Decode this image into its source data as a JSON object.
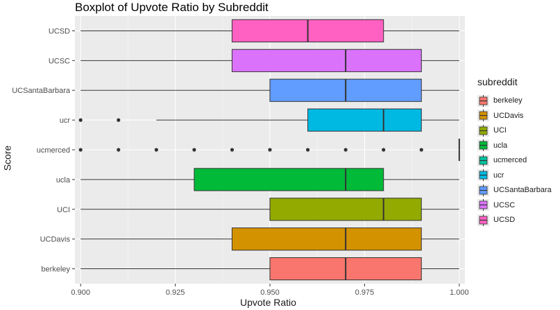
{
  "chart_data": {
    "type": "boxplot",
    "orientation": "horizontal",
    "title": "Boxplot of Upvote Ratio by Subreddit",
    "xlabel": "Upvote Ratio",
    "ylabel": "Score",
    "xlim": [
      0.8985,
      1.0015
    ],
    "xticks": [
      "0.900",
      "0.925",
      "0.950",
      "0.975",
      "1.000"
    ],
    "xtick_values": [
      0.9,
      0.925,
      0.95,
      0.975,
      1.0
    ],
    "grid": true,
    "legend_title": "subreddit",
    "legend_position": "right",
    "categories": [
      "berkeley",
      "UCDavis",
      "UCI",
      "ucla",
      "ucmerced",
      "ucr",
      "UCSantaBarbara",
      "UCSC",
      "UCSD"
    ],
    "series": [
      {
        "name": "berkeley",
        "color": "#F8766D",
        "whisker_low": 0.9,
        "q1": 0.95,
        "median": 0.97,
        "q3": 0.99,
        "whisker_high": 1.0,
        "outliers": []
      },
      {
        "name": "UCDavis",
        "color": "#D39200",
        "whisker_low": 0.9,
        "q1": 0.94,
        "median": 0.97,
        "q3": 0.99,
        "whisker_high": 1.0,
        "outliers": []
      },
      {
        "name": "UCI",
        "color": "#93AA00",
        "whisker_low": 0.9,
        "q1": 0.95,
        "median": 0.98,
        "q3": 0.99,
        "whisker_high": 1.0,
        "outliers": []
      },
      {
        "name": "ucla",
        "color": "#00BA38",
        "whisker_low": 0.9,
        "q1": 0.93,
        "median": 0.97,
        "q3": 0.98,
        "whisker_high": 1.0,
        "outliers": []
      },
      {
        "name": "ucmerced",
        "color": "#00C19F",
        "whisker_low": 1.0,
        "q1": 1.0,
        "median": 1.0,
        "q3": 1.0,
        "whisker_high": 1.0,
        "outliers": [
          0.9,
          0.91,
          0.92,
          0.93,
          0.94,
          0.95,
          0.96,
          0.97,
          0.98,
          0.99
        ]
      },
      {
        "name": "ucr",
        "color": "#00B9E3",
        "whisker_low": 0.92,
        "q1": 0.96,
        "median": 0.98,
        "q3": 0.99,
        "whisker_high": 1.0,
        "outliers": [
          0.9,
          0.91
        ]
      },
      {
        "name": "UCSantaBarbara",
        "color": "#619CFF",
        "whisker_low": 0.9,
        "q1": 0.95,
        "median": 0.97,
        "q3": 0.99,
        "whisker_high": 1.0,
        "outliers": []
      },
      {
        "name": "UCSC",
        "color": "#DB72FB",
        "whisker_low": 0.9,
        "q1": 0.94,
        "median": 0.97,
        "q3": 0.99,
        "whisker_high": 1.0,
        "outliers": []
      },
      {
        "name": "UCSD",
        "color": "#FF61C3",
        "whisker_low": 0.9,
        "q1": 0.94,
        "median": 0.96,
        "q3": 0.98,
        "whisker_high": 1.0,
        "outliers": []
      }
    ]
  }
}
